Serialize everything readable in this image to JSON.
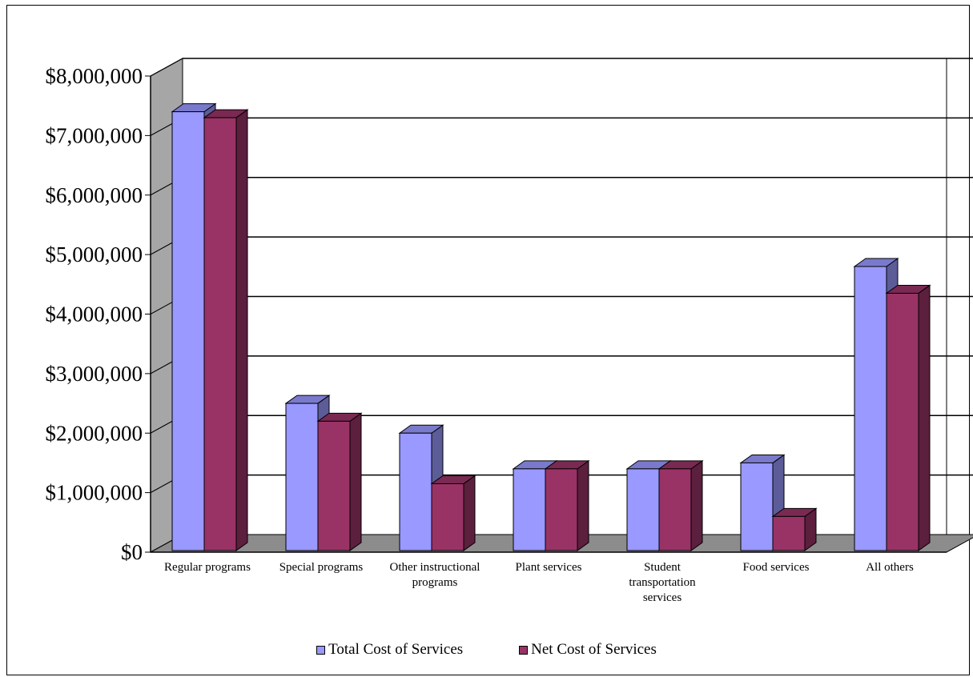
{
  "chart_data": {
    "type": "bar",
    "title": "",
    "xlabel": "",
    "ylabel": "",
    "categories": [
      [
        "Regular programs"
      ],
      [
        "Special programs"
      ],
      [
        "Other instructional",
        "programs"
      ],
      [
        "Plant services"
      ],
      [
        "Student",
        "transportation",
        "services"
      ],
      [
        "Food services"
      ],
      [
        "All others"
      ]
    ],
    "series": [
      {
        "name": "Total Cost of Services",
        "color": "#9999ff",
        "values": [
          7400000,
          2500000,
          2000000,
          1400000,
          1400000,
          1500000,
          4800000
        ]
      },
      {
        "name": "Net Cost of Services",
        "color": "#993366",
        "values": [
          7300000,
          2200000,
          1150000,
          1400000,
          1400000,
          600000,
          4350000
        ]
      }
    ],
    "ylim": [
      0,
      8000000
    ],
    "yticks": [
      "$0",
      "$1,000,000",
      "$2,000,000",
      "$3,000,000",
      "$4,000,000",
      "$5,000,000",
      "$6,000,000",
      "$7,000,000",
      "$8,000,000"
    ],
    "grid": true,
    "legend_position": "bottom"
  },
  "legend": {
    "total_label": "Total Cost of Services",
    "net_label": "Net Cost of Services"
  }
}
